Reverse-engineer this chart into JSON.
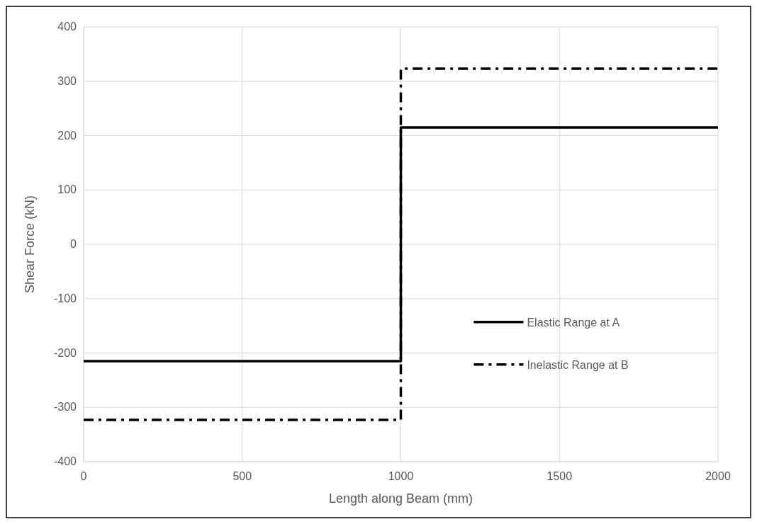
{
  "chart_data": {
    "type": "line",
    "xlabel": "Length along Beam (mm)",
    "ylabel": "Shear Force (kN)",
    "xlim": [
      0,
      2000
    ],
    "xticks": [
      0,
      500,
      1000,
      1500,
      2000
    ],
    "ylim": [
      -400,
      400
    ],
    "yticks": [
      -400,
      -300,
      -200,
      -100,
      0,
      100,
      200,
      300,
      400
    ],
    "grid": true,
    "legend": "right",
    "series": [
      {
        "name": "Elastic Range at A",
        "color": "#000000",
        "line_style": "solid",
        "x": [
          0,
          1000,
          1000,
          2000
        ],
        "values": [
          -215,
          -215,
          215,
          215
        ]
      },
      {
        "name": "Inelastic Range at B",
        "color": "#000000",
        "line_style": "dashed",
        "x": [
          0,
          1000,
          1000,
          2000
        ],
        "values": [
          -323,
          -323,
          323,
          323
        ]
      }
    ]
  }
}
